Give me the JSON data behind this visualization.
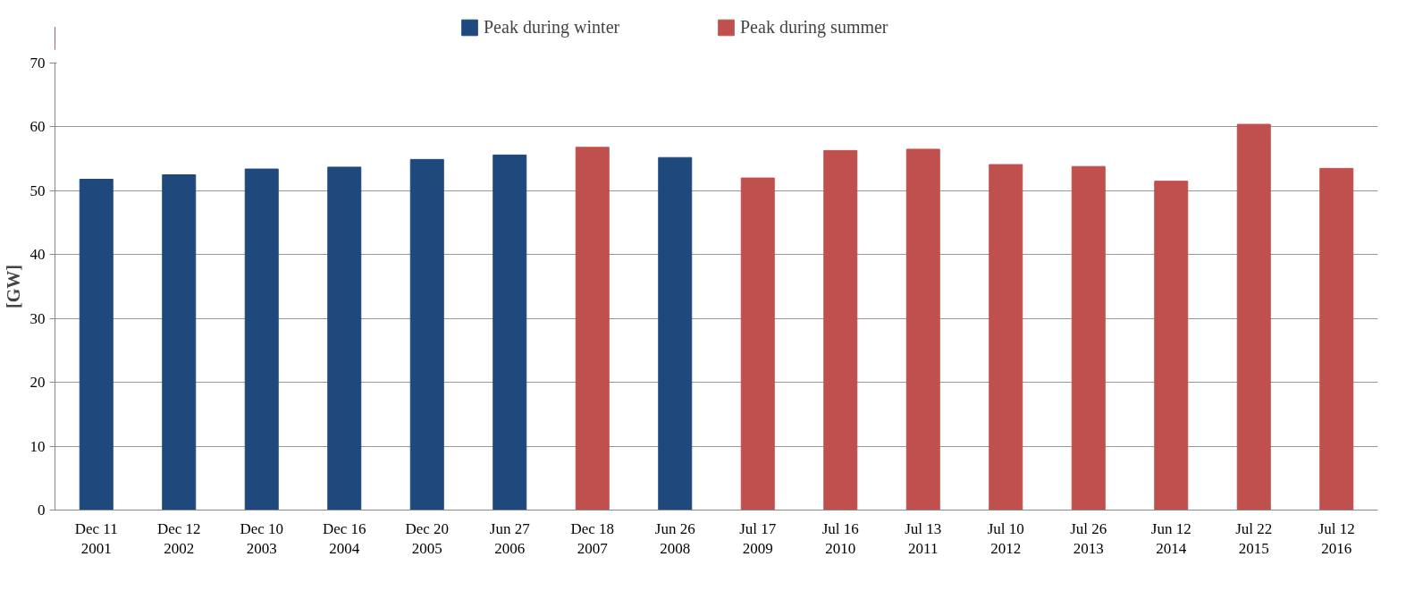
{
  "chart_data": {
    "type": "bar",
    "ylabel": "[GW]",
    "categories": [
      "Dec 11\n2001",
      "Dec 12\n2002",
      "Dec 10\n2003",
      "Dec 16\n2004",
      "Dec 20\n2005",
      "Jun 27\n2006",
      "Dec 18\n2007",
      "Jun 26\n2008",
      "Jul 17\n2009",
      "Jul 16\n2010",
      "Jul 13\n2011",
      "Jul 10\n2012",
      "Jul 26\n2013",
      "Jun 12\n2014",
      "Jul 22\n2015",
      "Jul 12\n2016"
    ],
    "series": [
      {
        "name": "Peak during winter",
        "color": "#1f497d",
        "values": [
          51.8,
          52.5,
          53.4,
          53.7,
          54.9,
          55.6,
          null,
          55.2,
          null,
          null,
          null,
          null,
          null,
          null,
          null,
          null
        ]
      },
      {
        "name": "Peak during summer",
        "color": "#c0504d",
        "values": [
          null,
          null,
          null,
          null,
          null,
          null,
          56.8,
          null,
          52.0,
          56.3,
          56.5,
          54.1,
          53.8,
          51.5,
          60.4,
          53.5
        ]
      }
    ],
    "ylim": [
      0,
      70
    ],
    "yticks": [
      0,
      10,
      20,
      30,
      40,
      50,
      60,
      70
    ],
    "grid": "y",
    "legend": "top"
  }
}
